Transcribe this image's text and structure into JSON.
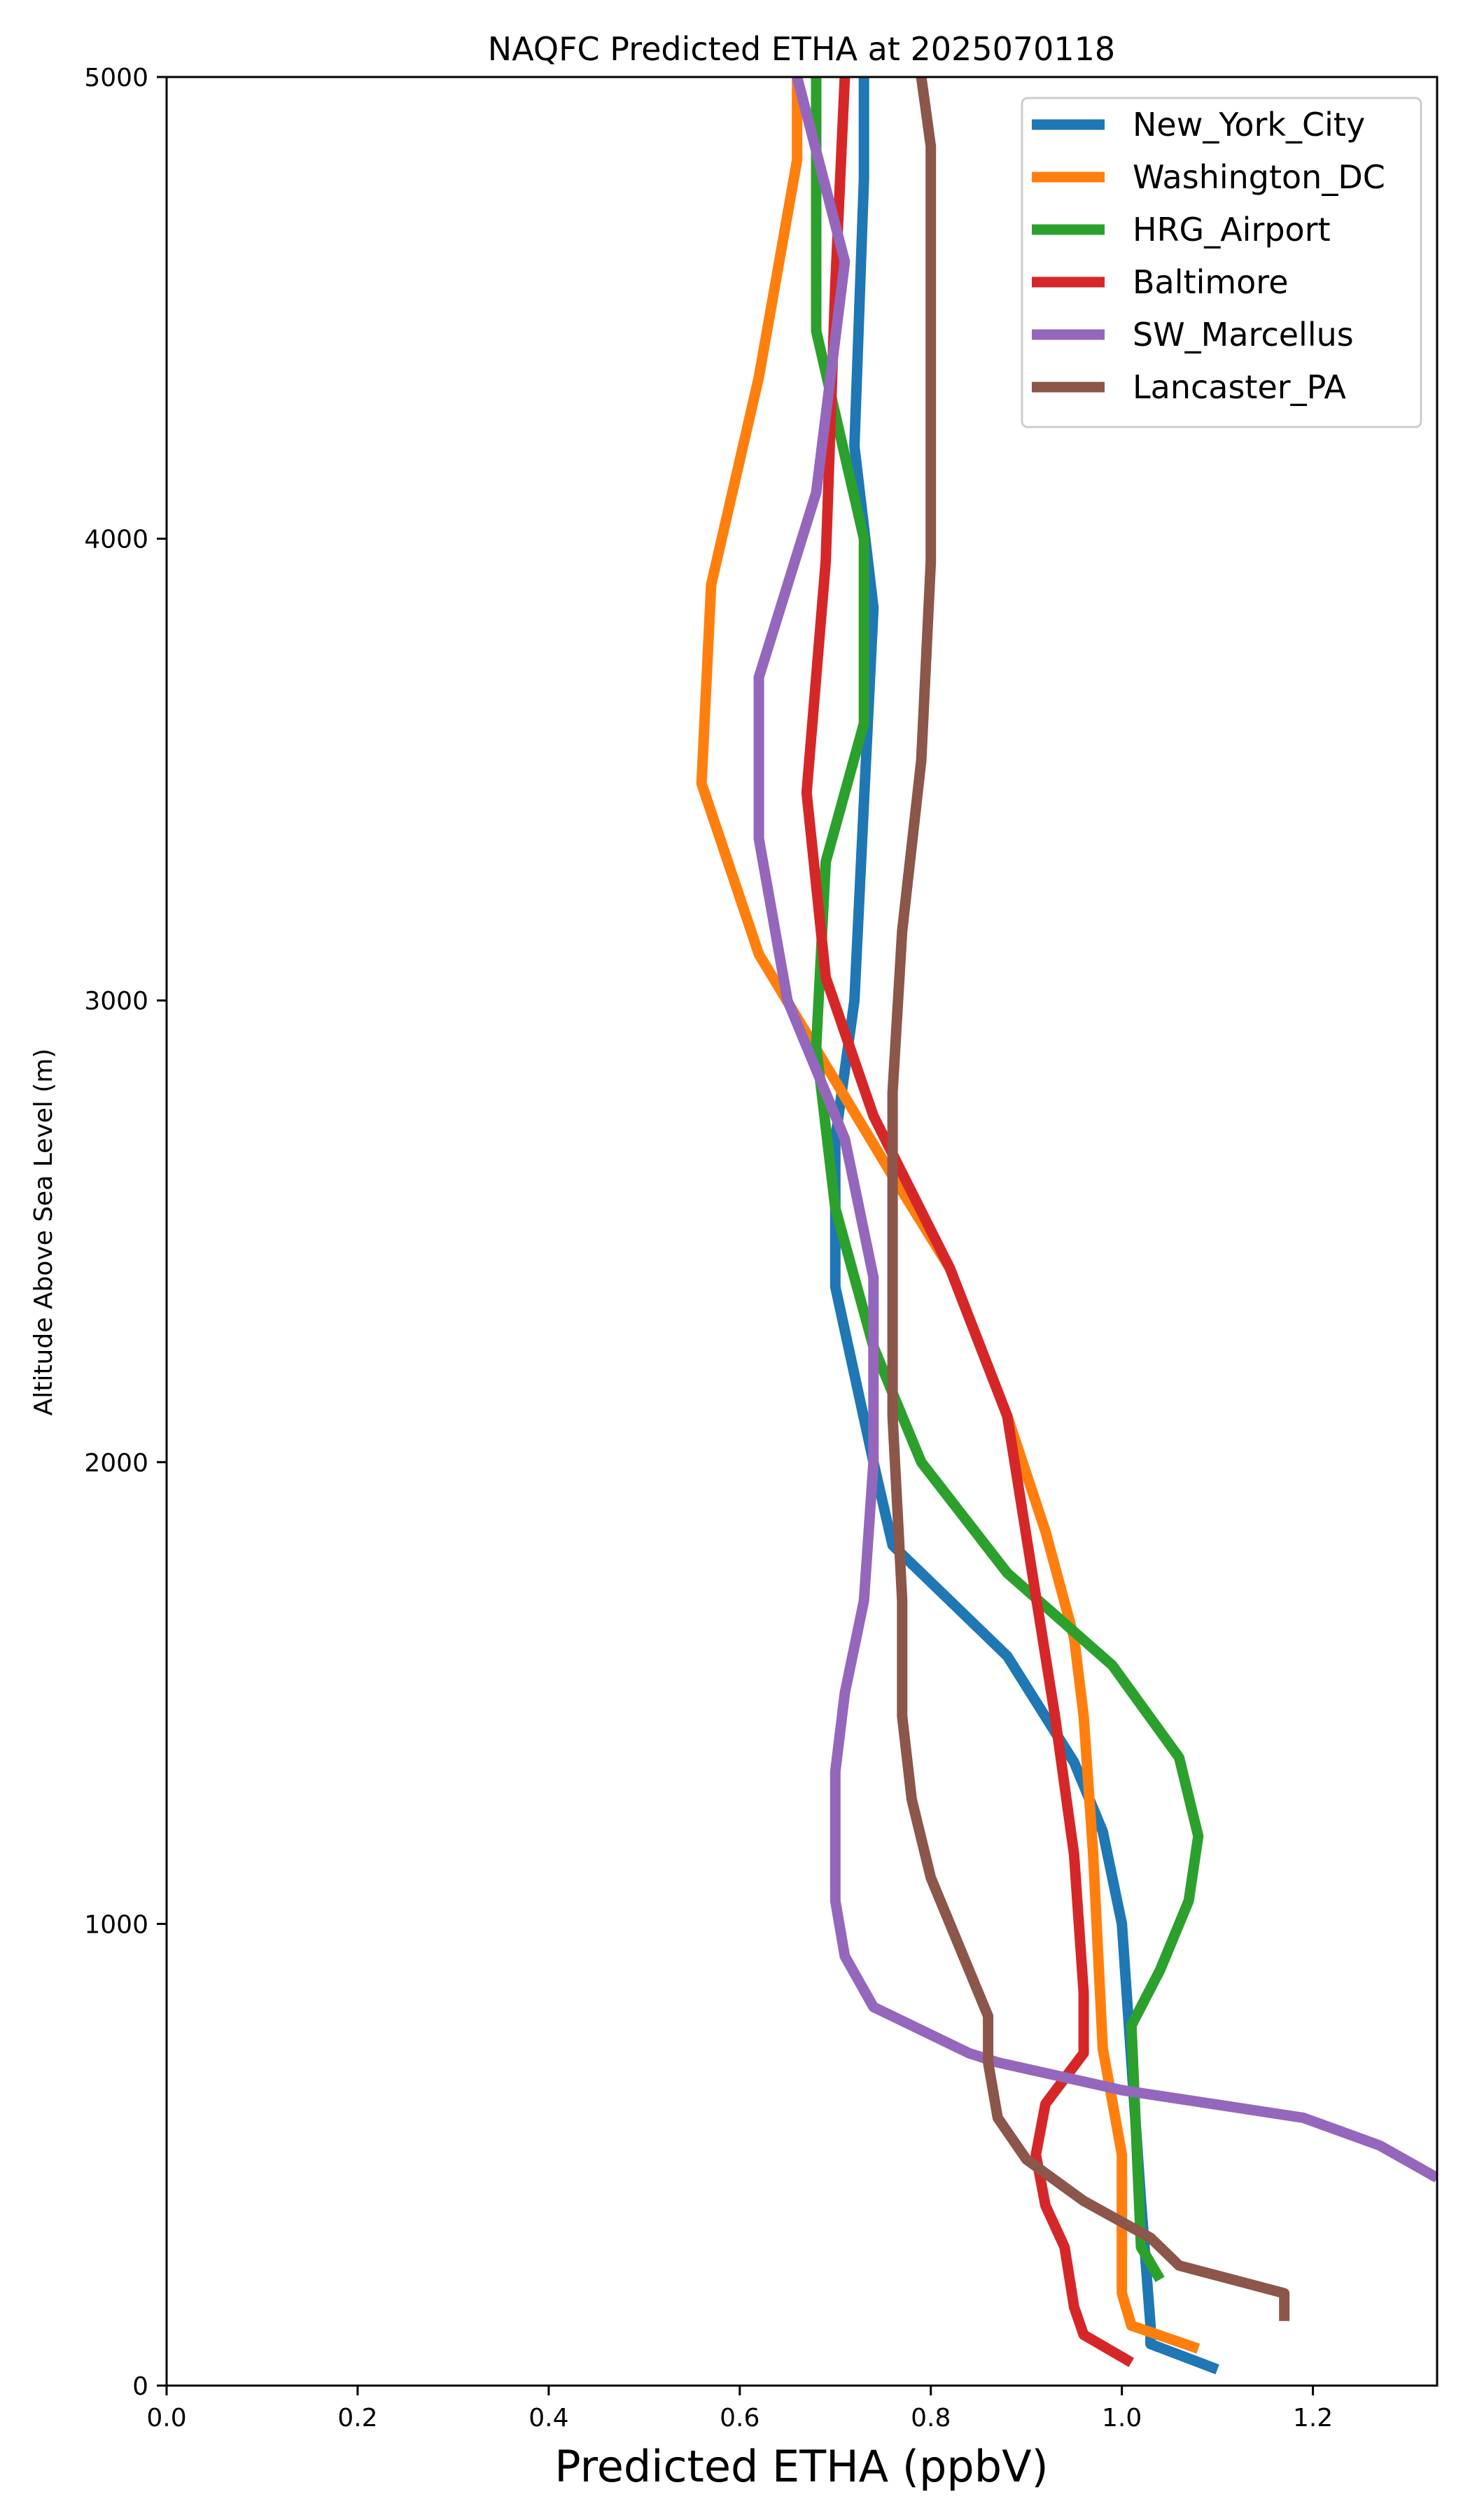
{
  "chart_data": {
    "type": "line",
    "title": "NAQFC Predicted ETHA at 2025070118",
    "xlabel": "Predicted ETHA (ppbV)",
    "ylabel": "Altitude Above Sea Level (m)",
    "xlim": [
      0.0,
      1.33
    ],
    "ylim": [
      0,
      5000
    ],
    "x_ticks": [
      "0.0",
      "0.2",
      "0.4",
      "0.6",
      "0.8",
      "1.0",
      "1.2"
    ],
    "y_ticks": [
      "0",
      "1000",
      "2000",
      "3000",
      "4000",
      "5000"
    ],
    "grid": false,
    "legend_position": "top-right",
    "series": [
      {
        "name": "New_York_City",
        "color": "#1f77b4",
        "points": [
          [
            1.1,
            35
          ],
          [
            1.03,
            90
          ],
          [
            1.03,
            130
          ],
          [
            1.02,
            400
          ],
          [
            1.01,
            700
          ],
          [
            1.0,
            1000
          ],
          [
            0.98,
            1200
          ],
          [
            0.95,
            1350
          ],
          [
            0.88,
            1580
          ],
          [
            0.76,
            1820
          ],
          [
            0.74,
            2000
          ],
          [
            0.7,
            2380
          ],
          [
            0.7,
            2700
          ],
          [
            0.72,
            3000
          ],
          [
            0.73,
            3430
          ],
          [
            0.74,
            3850
          ],
          [
            0.72,
            4200
          ],
          [
            0.73,
            4780
          ],
          [
            0.73,
            5000
          ]
        ]
      },
      {
        "name": "Washington_DC",
        "color": "#ff7f0e",
        "points": [
          [
            1.08,
            80
          ],
          [
            1.01,
            130
          ],
          [
            1.0,
            200
          ],
          [
            1.0,
            500
          ],
          [
            0.98,
            730
          ],
          [
            0.97,
            1150
          ],
          [
            0.96,
            1450
          ],
          [
            0.95,
            1620
          ],
          [
            0.92,
            1850
          ],
          [
            0.88,
            2100
          ],
          [
            0.82,
            2420
          ],
          [
            0.76,
            2620
          ],
          [
            0.62,
            3100
          ],
          [
            0.56,
            3470
          ],
          [
            0.57,
            3900
          ],
          [
            0.62,
            4350
          ],
          [
            0.66,
            4820
          ],
          [
            0.66,
            5000
          ]
        ]
      },
      {
        "name": "HRG_Airport",
        "color": "#2ca02c",
        "points": [
          [
            1.04,
            230
          ],
          [
            1.02,
            300
          ],
          [
            1.01,
            780
          ],
          [
            1.04,
            900
          ],
          [
            1.07,
            1050
          ],
          [
            1.08,
            1190
          ],
          [
            1.06,
            1360
          ],
          [
            0.99,
            1560
          ],
          [
            0.88,
            1760
          ],
          [
            0.79,
            2000
          ],
          [
            0.74,
            2250
          ],
          [
            0.7,
            2550
          ],
          [
            0.68,
            2900
          ],
          [
            0.69,
            3300
          ],
          [
            0.73,
            3600
          ],
          [
            0.73,
            4000
          ],
          [
            0.68,
            4450
          ],
          [
            0.68,
            5000
          ]
        ]
      },
      {
        "name": "Baltimore",
        "color": "#d62728",
        "points": [
          [
            1.01,
            50
          ],
          [
            0.96,
            110
          ],
          [
            0.95,
            170
          ],
          [
            0.94,
            300
          ],
          [
            0.92,
            390
          ],
          [
            0.91,
            500
          ],
          [
            0.92,
            610
          ],
          [
            0.96,
            720
          ],
          [
            0.96,
            850
          ],
          [
            0.95,
            1150
          ],
          [
            0.93,
            1450
          ],
          [
            0.88,
            2100
          ],
          [
            0.82,
            2420
          ],
          [
            0.74,
            2750
          ],
          [
            0.69,
            3050
          ],
          [
            0.67,
            3450
          ],
          [
            0.69,
            3950
          ],
          [
            0.7,
            4550
          ],
          [
            0.71,
            5000
          ]
        ]
      },
      {
        "name": "SW_Marcellus",
        "color": "#9467bd",
        "points": [
          [
            1.33,
            450
          ],
          [
            1.27,
            520
          ],
          [
            1.19,
            580
          ],
          [
            1.0,
            640
          ],
          [
            0.87,
            700
          ],
          [
            0.84,
            720
          ],
          [
            0.74,
            820
          ],
          [
            0.71,
            930
          ],
          [
            0.7,
            1050
          ],
          [
            0.7,
            1330
          ],
          [
            0.71,
            1500
          ],
          [
            0.73,
            1700
          ],
          [
            0.74,
            2000
          ],
          [
            0.74,
            2400
          ],
          [
            0.71,
            2700
          ],
          [
            0.65,
            3000
          ],
          [
            0.62,
            3350
          ],
          [
            0.62,
            3700
          ],
          [
            0.68,
            4100
          ],
          [
            0.71,
            4600
          ],
          [
            0.66,
            5000
          ]
        ]
      },
      {
        "name": "Lancaster_PA",
        "color": "#8c564b",
        "points": [
          [
            1.17,
            140
          ],
          [
            1.17,
            200
          ],
          [
            1.06,
            260
          ],
          [
            1.03,
            320
          ],
          [
            0.96,
            400
          ],
          [
            0.9,
            490
          ],
          [
            0.87,
            580
          ],
          [
            0.86,
            700
          ],
          [
            0.86,
            800
          ],
          [
            0.83,
            950
          ],
          [
            0.8,
            1100
          ],
          [
            0.78,
            1270
          ],
          [
            0.77,
            1450
          ],
          [
            0.77,
            1700
          ],
          [
            0.76,
            2100
          ],
          [
            0.76,
            2450
          ],
          [
            0.76,
            2800
          ],
          [
            0.77,
            3150
          ],
          [
            0.79,
            3520
          ],
          [
            0.8,
            3950
          ],
          [
            0.8,
            4400
          ],
          [
            0.8,
            4850
          ],
          [
            0.79,
            5000
          ]
        ]
      }
    ]
  }
}
